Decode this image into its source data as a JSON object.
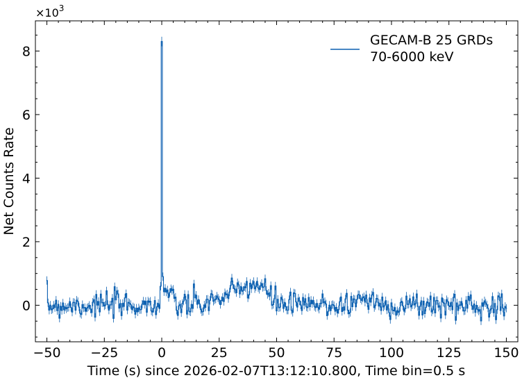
{
  "chart_data": {
    "type": "line",
    "xlabel": "Time (s) since 2026-02-07T13:12:10.800, Time bin=0.5 s",
    "ylabel": "Net Counts Rate",
    "y_multiplier": {
      "base": "×10",
      "exponent": "3"
    },
    "xlim": [
      -55,
      155
    ],
    "ylim": [
      -1.15,
      8.95
    ],
    "x_ticks": [
      -50,
      -25,
      0,
      25,
      50,
      75,
      100,
      125,
      150
    ],
    "x_tick_labels": [
      "−50",
      "−25",
      "0",
      "25",
      "50",
      "75",
      "100",
      "125",
      "150"
    ],
    "y_ticks": [
      0,
      2,
      4,
      6,
      8
    ],
    "y_tick_labels": [
      "0",
      "2",
      "4",
      "6",
      "8"
    ],
    "bin_width": 0.5,
    "legend": {
      "position": "top-right",
      "lines": [
        "GECAM-B 25 GRDs",
        "70-6000 keV"
      ]
    },
    "series": [
      {
        "name": "GECAM-B 25 GRDs 70-6000 keV",
        "color": "#0a5fb0",
        "profile": {
          "x_start": -50,
          "x_end": 150,
          "noise_sigma": 0.2,
          "spike": {
            "x": [
              -0.5,
              0,
              0.5
            ],
            "y": [
              0.6,
              8.3,
              0.9
            ]
          },
          "features": [
            {
              "center": 2,
              "amplitude": 0.45,
              "width": 1.5
            },
            {
              "center": 30,
              "amplitude": 0.3,
              "width": 6
            },
            {
              "center": 41,
              "amplitude": 0.6,
              "width": 5
            },
            {
              "center": 88,
              "amplitude": 0.25,
              "width": 3
            }
          ]
        }
      }
    ]
  }
}
